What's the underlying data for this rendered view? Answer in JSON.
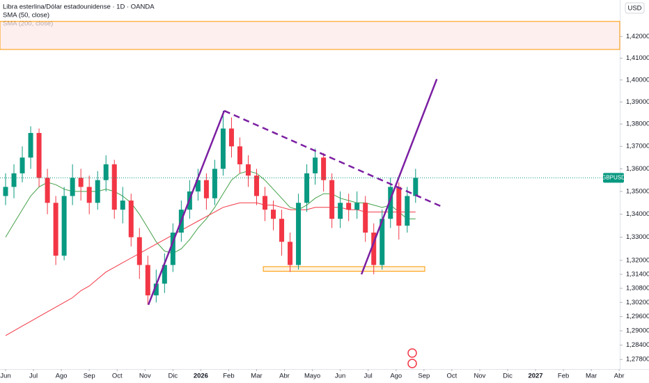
{
  "chart_data": {
    "type": "candlestick",
    "title": "Libra esterlina/Dólar estadounidense · 1D · OANDA",
    "currency": "USD",
    "log_scale": true,
    "up_color": "#089981",
    "down_color": "#f23645",
    "xlim": [
      -0.2,
      22.02
    ],
    "ylim": [
      1.274,
      1.437
    ],
    "xticks": [
      {
        "value": 0,
        "label": "Jun"
      },
      {
        "value": 1,
        "label": "Jul"
      },
      {
        "value": 2,
        "label": "Ago"
      },
      {
        "value": 3,
        "label": "Sep"
      },
      {
        "value": 4,
        "label": "Oct"
      },
      {
        "value": 5,
        "label": "Nov"
      },
      {
        "value": 6,
        "label": "Dic"
      },
      {
        "value": 7,
        "label": "2026"
      },
      {
        "value": 8,
        "label": "Feb"
      },
      {
        "value": 9,
        "label": "Mar"
      },
      {
        "value": 10,
        "label": "Abr"
      },
      {
        "value": 11,
        "label": "Mayo"
      },
      {
        "value": 12,
        "label": "Jun"
      },
      {
        "value": 13,
        "label": "Jul"
      },
      {
        "value": 14,
        "label": "Ago"
      },
      {
        "value": 15,
        "label": "Sep"
      },
      {
        "value": 16,
        "label": "Oct"
      },
      {
        "value": 17,
        "label": "Nov"
      },
      {
        "value": 18,
        "label": "Dic"
      },
      {
        "value": 19,
        "label": "2027"
      },
      {
        "value": 20,
        "label": "Feb"
      },
      {
        "value": 21,
        "label": "Mar"
      },
      {
        "value": 22,
        "label": "Abr"
      }
    ],
    "yticks": [
      {
        "value": 1.42,
        "label": "1,42000"
      },
      {
        "value": 1.41,
        "label": "1,41000"
      },
      {
        "value": 1.4,
        "label": "1,40000"
      },
      {
        "value": 1.39,
        "label": "1,39000"
      },
      {
        "value": 1.38,
        "label": "1,38000"
      },
      {
        "value": 1.37,
        "label": "1,37000"
      },
      {
        "value": 1.36,
        "label": "1,36000"
      },
      {
        "value": 1.35,
        "label": "1,35000"
      },
      {
        "value": 1.34,
        "label": "1,34000"
      },
      {
        "value": 1.33,
        "label": "1,33000"
      },
      {
        "value": 1.32,
        "label": "1,32000"
      },
      {
        "value": 1.314,
        "label": "1,31400"
      },
      {
        "value": 1.308,
        "label": "1,30800"
      },
      {
        "value": 1.302,
        "label": "1,30200"
      },
      {
        "value": 1.296,
        "label": "1,29600"
      },
      {
        "value": 1.29,
        "label": "1,29000"
      },
      {
        "value": 1.284,
        "label": "1,28400"
      },
      {
        "value": 1.278,
        "label": "1,27800"
      }
    ],
    "x": [
      0,
      0.3,
      0.6,
      0.9,
      1.2,
      1.5,
      1.8,
      2.1,
      2.4,
      2.7,
      3,
      3.3,
      3.6,
      3.9,
      4.2,
      4.5,
      4.8,
      5.1,
      5.4,
      5.7,
      6,
      6.3,
      6.6,
      6.9,
      7.2,
      7.5,
      7.8,
      8.1,
      8.4,
      8.7,
      9,
      9.3,
      9.6,
      9.9,
      10.2,
      10.5,
      10.8,
      11.1,
      11.4,
      11.7,
      12,
      12.3,
      12.6,
      12.9,
      13.2,
      13.5,
      13.8,
      14.1,
      14.4,
      14.7
    ],
    "open": [
      1.348,
      1.352,
      1.358,
      1.365,
      1.376,
      1.356,
      1.345,
      1.322,
      1.348,
      1.356,
      1.352,
      1.345,
      1.355,
      1.362,
      1.342,
      1.346,
      1.33,
      1.318,
      1.305,
      1.31,
      1.318,
      1.332,
      1.342,
      1.35,
      1.355,
      1.347,
      1.36,
      1.378,
      1.37,
      1.362,
      1.357,
      1.348,
      1.342,
      1.338,
      1.328,
      1.318,
      1.345,
      1.358,
      1.365,
      1.355,
      1.338,
      1.345,
      1.342,
      1.345,
      1.332,
      1.318,
      1.338,
      1.352,
      1.335,
      1.348
    ],
    "high": [
      1.358,
      1.362,
      1.37,
      1.379,
      1.378,
      1.36,
      1.348,
      1.352,
      1.362,
      1.36,
      1.357,
      1.359,
      1.366,
      1.364,
      1.352,
      1.349,
      1.334,
      1.322,
      1.316,
      1.323,
      1.336,
      1.346,
      1.355,
      1.36,
      1.358,
      1.364,
      1.386,
      1.383,
      1.374,
      1.366,
      1.36,
      1.352,
      1.346,
      1.342,
      1.332,
      1.349,
      1.362,
      1.369,
      1.367,
      1.358,
      1.35,
      1.349,
      1.35,
      1.348,
      1.336,
      1.342,
      1.356,
      1.354,
      1.352,
      1.36
    ],
    "low": [
      1.344,
      1.347,
      1.354,
      1.36,
      1.352,
      1.34,
      1.318,
      1.32,
      1.344,
      1.346,
      1.34,
      1.342,
      1.35,
      1.338,
      1.336,
      1.326,
      1.312,
      1.301,
      1.302,
      1.306,
      1.315,
      1.328,
      1.338,
      1.346,
      1.342,
      1.344,
      1.357,
      1.365,
      1.358,
      1.352,
      1.344,
      1.337,
      1.333,
      1.322,
      1.315,
      1.316,
      1.341,
      1.353,
      1.35,
      1.334,
      1.334,
      1.337,
      1.338,
      1.328,
      1.314,
      1.316,
      1.334,
      1.329,
      1.332,
      1.345
    ],
    "close": [
      1.352,
      1.358,
      1.365,
      1.376,
      1.356,
      1.345,
      1.322,
      1.348,
      1.356,
      1.352,
      1.345,
      1.355,
      1.362,
      1.342,
      1.346,
      1.33,
      1.318,
      1.305,
      1.31,
      1.318,
      1.332,
      1.342,
      1.35,
      1.355,
      1.347,
      1.36,
      1.378,
      1.37,
      1.362,
      1.357,
      1.348,
      1.342,
      1.338,
      1.328,
      1.318,
      1.345,
      1.358,
      1.365,
      1.355,
      1.338,
      1.345,
      1.342,
      1.345,
      1.332,
      1.318,
      1.338,
      1.352,
      1.335,
      1.348,
      1.356
    ],
    "series": [
      {
        "name": "SMA (50, close)",
        "color": "#43a047",
        "values": [
          1.33,
          1.336,
          1.342,
          1.348,
          1.352,
          1.354,
          1.353,
          1.351,
          1.35,
          1.35,
          1.35,
          1.35,
          1.351,
          1.35,
          1.348,
          1.345,
          1.34,
          1.334,
          1.328,
          1.324,
          1.323,
          1.325,
          1.329,
          1.334,
          1.338,
          1.343,
          1.349,
          1.355,
          1.358,
          1.359,
          1.358,
          1.355,
          1.351,
          1.347,
          1.343,
          1.342,
          1.344,
          1.347,
          1.349,
          1.349,
          1.347,
          1.346,
          1.345,
          1.345,
          1.344,
          1.343,
          1.344,
          1.341,
          1.338,
          1.338
        ]
      },
      {
        "name": "SMA (200, close)",
        "color": "#f23645",
        "values": [
          1.288,
          1.29,
          1.292,
          1.294,
          1.296,
          1.298,
          1.3,
          1.302,
          1.304,
          1.307,
          1.309,
          1.312,
          1.315,
          1.317,
          1.319,
          1.321,
          1.323,
          1.325,
          1.327,
          1.329,
          1.331,
          1.333,
          1.335,
          1.337,
          1.339,
          1.341,
          1.343,
          1.344,
          1.345,
          1.345,
          1.345,
          1.344,
          1.344,
          1.343,
          1.342,
          1.342,
          1.342,
          1.343,
          1.343,
          1.343,
          1.343,
          1.342,
          1.342,
          1.341,
          1.341,
          1.341,
          1.341,
          1.341,
          1.341,
          1.341
        ]
      }
    ],
    "trend_lines": [
      {
        "x": [
          5.12,
          7.84
        ],
        "y": [
          1.301,
          1.386
        ],
        "color": "#7b1fa2",
        "dashed": false
      },
      {
        "x": [
          7.84,
          15.7
        ],
        "y": [
          1.386,
          1.343
        ],
        "color": "#7b1fa2",
        "dashed": true
      },
      {
        "x": [
          12.76,
          15.46
        ],
        "y": [
          1.314,
          1.4004
        ],
        "color": "#7b1fa2",
        "dashed": false
      }
    ],
    "resistance_zone": {
      "y": [
        1.414,
        1.427
      ],
      "color": "#ff9800"
    },
    "support_box": {
      "x": [
        9.24,
        15.03
      ],
      "y": [
        1.3153,
        1.3173
      ],
      "color": "#ff9800"
    },
    "last_price": {
      "value": 1.356,
      "label": "GBPUSD",
      "color": "#089981"
    }
  }
}
